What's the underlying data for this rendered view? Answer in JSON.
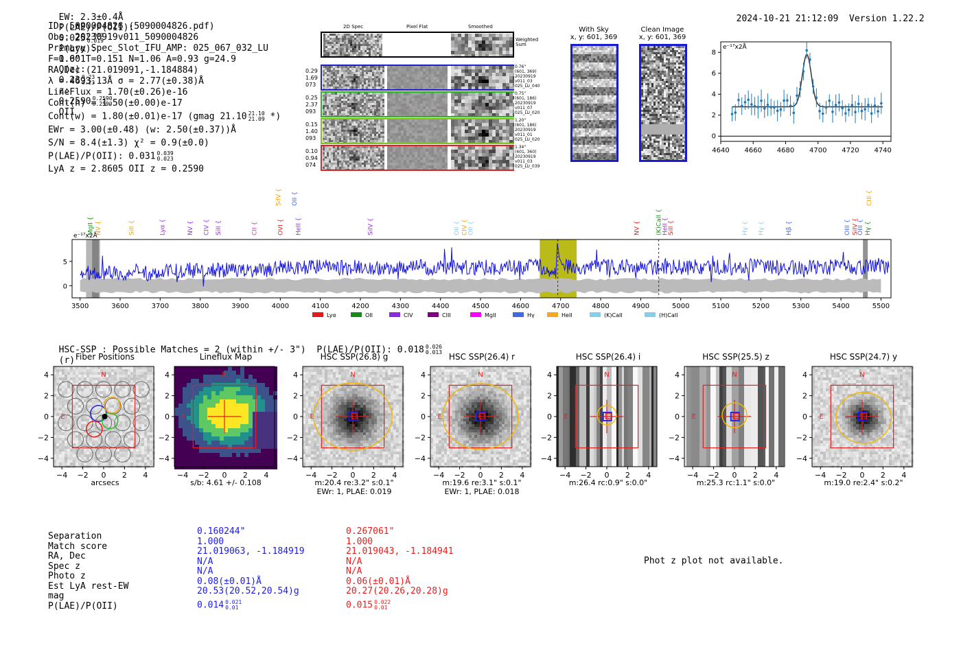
{
  "header": {
    "ew": "EW: 2.3±0.4Å",
    "plae_label": "P(LAE)/P(OII):",
    "plae_val": "0.025",
    "plae_hi": "0.033",
    "plae_lo": "0.019",
    "plya_label": "P(Lyα):",
    "plya_val": "0.001",
    "qz_label": "Q(z):",
    "qz_val": "0.23",
    "qz_hi": "0.23",
    "qz_lo": "0.23",
    "z_label": "z:",
    "z_val": "0.2590",
    "z_hi": "0.2590",
    "z_lo": "0.2590",
    "z_line": "OII",
    "timestamp": "2024-10-21 21:12:09",
    "version": "Version 1.22.2"
  },
  "info": {
    "id": "ID: 5090004826 (5090004826.pdf)",
    "obs": "Obs: 20230919v011_5090004826",
    "primary": "Primary Spec_Slot_IFU_AMP: 025_067_032_LU",
    "params": "F=1.6\"  T=0.151  N=1.06  A=0.93  g=24.9",
    "radec": "RA,Dec (21.019091,-1.184884)",
    "lambda": "λ = 4693.13Å  σ = 2.77(±0.38)Å",
    "lineflux": "LineFlux = 1.70(±0.26)e-16",
    "contn": "Cont(n) = 1.50(±0.00)e-17",
    "contw": "Cont(w) = 1.80(±0.01)e-17 (gmag 21.10",
    "contw_hi": "21.10",
    "contw_lo": "21.09",
    "contw_end": "*)",
    "ewr": "EWr = 3.00(±0.48)  (w: 2.50(±0.37))Å",
    "sn": "S/N = 8.4(±1.3)  χ² = 0.9(±0.0)",
    "plae": "P(LAE)/P(OII): 0.031",
    "plae_hi": "0.039",
    "plae_lo": "0.023",
    "lyaz": "LyA z = 2.8605  OII z = 0.2590"
  },
  "cutouts": {
    "col_headers": [
      "2D Spec",
      "Pixel Flat",
      "Smoothed"
    ],
    "weighted_sum": "Weighted Sum",
    "rows": [
      {
        "left": [
          "0.29",
          "1.69",
          "073"
        ],
        "right": [
          "0.76\"",
          "(601, 369)",
          "20230919",
          "v011_03",
          "025_LU_040"
        ],
        "color": "#1f1fcf"
      },
      {
        "left": [
          "0.25",
          "2.37",
          "093"
        ],
        "right": [
          "0.75\"",
          "(601, 186)",
          "20230919",
          "v011_07",
          "025_LU_020"
        ],
        "color": "#22b822"
      },
      {
        "left": [
          "0.15",
          "1.40",
          "093"
        ],
        "right": [
          "1.20\"",
          "(601, 186)",
          "20230919",
          "v011_01",
          "025_LU_020"
        ],
        "color": "#7ec217"
      },
      {
        "left": [
          "0.10",
          "0.94",
          "074"
        ],
        "right": [
          "1.34\"",
          "(601, 360)",
          "20230919",
          "v011_03",
          "025_LU_039"
        ],
        "color": "#e02020"
      }
    ],
    "with_sky_title": "With Sky",
    "with_sky_xy": "x, y: 601, 369",
    "clean_title": "Clean Image",
    "clean_xy": "x, y: 601, 369"
  },
  "zoom_plot": {
    "ylabel_unit": "e⁻¹⁷x2Å",
    "xticks": [
      "4640",
      "4660",
      "4680",
      "4700",
      "4720",
      "4740"
    ],
    "yticks": [
      "0",
      "2",
      "4",
      "6",
      "8"
    ]
  },
  "spectrum": {
    "unit": "e⁻¹⁷x2Å",
    "xticks": [
      "3500",
      "3600",
      "3700",
      "3800",
      "3900",
      "4000",
      "4100",
      "4200",
      "4300",
      "4400",
      "4500",
      "4600",
      "4700",
      "4800",
      "4900",
      "5000",
      "5100",
      "5200",
      "5300",
      "5400",
      "5500"
    ],
    "yticks": [
      "5",
      "0"
    ],
    "lines": [
      {
        "label": "MgII",
        "color": "#1a8a1a",
        "row": 0
      },
      {
        "label": "NV",
        "color": "#f0a000",
        "row": 0
      },
      {
        "label": "SiII",
        "color": "#f0a000",
        "row": 0
      },
      {
        "label": "Lyα",
        "color": "#9a2be2",
        "row": 0
      },
      {
        "label": "NV",
        "color": "#9a2be2",
        "row": 0
      },
      {
        "label": "CIV",
        "color": "#9a2be2",
        "row": 0
      },
      {
        "label": "SiII",
        "color": "#9a2be2",
        "row": 0
      },
      {
        "label": "CII",
        "color": "#cc33cc",
        "row": 0
      },
      {
        "label": "SiIV",
        "color": "#f0a000",
        "row": 1
      },
      {
        "label": "OVI",
        "color": "#e02020",
        "row": 0
      },
      {
        "label": "OII",
        "color": "#4466ee",
        "row": 1
      },
      {
        "label": "HeII",
        "color": "#9a2be2",
        "row": 0
      },
      {
        "label": "SiIV",
        "color": "#9a2be2",
        "row": 0
      },
      {
        "label": "OII",
        "color": "#88ccee",
        "row": 0
      },
      {
        "label": "CIV",
        "color": "#f0a000",
        "row": 0
      },
      {
        "label": "OII",
        "color": "#88ccee",
        "row": 0
      },
      {
        "label": "NV",
        "color": "#e02020",
        "row": 0
      },
      {
        "label": "SiII",
        "color": "#e02020",
        "row": 0
      },
      {
        "label": "(K)CaII",
        "color": "#1a8a1a",
        "row": 0
      },
      {
        "label": "HeII",
        "color": "#9a2be2",
        "row": 0
      },
      {
        "label": "Hγ",
        "color": "#88ccee",
        "row": 0
      },
      {
        "label": "Hγ",
        "color": "#88ccee",
        "row": 0
      },
      {
        "label": "Hβ",
        "color": "#4466ee",
        "row": 0
      },
      {
        "label": "OIII",
        "color": "#4466ee",
        "row": 0
      },
      {
        "label": "SiIV",
        "color": "#e02020",
        "row": 0
      },
      {
        "label": "OIII",
        "color": "#4466ee",
        "row": 0
      },
      {
        "label": "CIII",
        "color": "#f0a000",
        "row": 1
      },
      {
        "label": "Hγ",
        "color": "#1a8a1a",
        "row": 0
      }
    ],
    "legend": [
      {
        "label": "Lyα",
        "color": "#e41a1c"
      },
      {
        "label": "OII",
        "color": "#1a8a1a"
      },
      {
        "label": "CIV",
        "color": "#8a2be2"
      },
      {
        "label": "CIII",
        "color": "#800080"
      },
      {
        "label": "MgII",
        "color": "#ff00ff"
      },
      {
        "label": "Hγ",
        "color": "#4169e1"
      },
      {
        "label": "HeII",
        "color": "#f5a623"
      },
      {
        "label": "(K)CaII",
        "color": "#87ceeb"
      },
      {
        "label": "(H)CaII",
        "color": "#87ceeb"
      }
    ]
  },
  "hsc": {
    "summary": "HSC-SSP : Possible Matches = 2 (within +/- 3\")  P(LAE)/P(OII): 0.018",
    "summary_hi": "0.026",
    "summary_lo": "0.013",
    "summary_end": "(r)",
    "panels": [
      {
        "title": "Fiber Positions",
        "caption1": "arcsecs",
        "caption2": ""
      },
      {
        "title": "Lineflux Map",
        "caption1": "s/b: 4.61 +/- 0.108",
        "caption2": ""
      },
      {
        "title": "HSC SSP(26.8) g",
        "caption1": "m:20.4  re:3.2\"  s:0.1\"",
        "caption2": "EWr: 1, PLAE: 0.019"
      },
      {
        "title": "HSC SSP(26.4) r",
        "caption1": "m:19.6  re:3.1\"  s:0.1\"",
        "caption2": "EWr: 1, PLAE: 0.018"
      },
      {
        "title": "HSC SSP(26.4) i",
        "caption1": "m:26.4 rc:0.9\"  s:0.0\"",
        "caption2": ""
      },
      {
        "title": "HSC SSP(25.5) z",
        "caption1": "m:25.3 rc:1.1\"  s:0.0\"",
        "caption2": ""
      },
      {
        "title": "HSC SSP(24.7) y",
        "caption1": "m:19.0  re:2.4\"  s:0.2\"",
        "caption2": ""
      }
    ],
    "tick_labels": [
      "4",
      "2",
      "0",
      "−2",
      "−4"
    ],
    "xtick_labels": [
      "−4",
      "−2",
      "0",
      "2",
      "4"
    ],
    "n_label": "N",
    "e_label": "E"
  },
  "matches": {
    "labels": [
      "Separation",
      "Match score",
      "RA, Dec",
      "Spec z",
      "Photo z",
      "Est LyA rest-EW",
      "mag",
      "P(LAE)/P(OII)"
    ],
    "blue": [
      "0.160244\"",
      "1.000",
      "21.019063, -1.184919",
      "N/A",
      "N/A",
      "0.08(±0.01)Å",
      "20.53(20.52,20.54)g",
      "0.014"
    ],
    "blue_plae_hi": "0.021",
    "blue_plae_lo": "0.01",
    "red": [
      "0.267061\"",
      "1.000",
      "21.019043, -1.184941",
      "N/A",
      "N/A",
      "0.06(±0.01)Å",
      "20.27(20.26,20.28)g",
      "0.015"
    ],
    "red_plae_hi": "0.022",
    "red_plae_lo": "0.01",
    "photz_msg": "Phot z plot not available."
  }
}
